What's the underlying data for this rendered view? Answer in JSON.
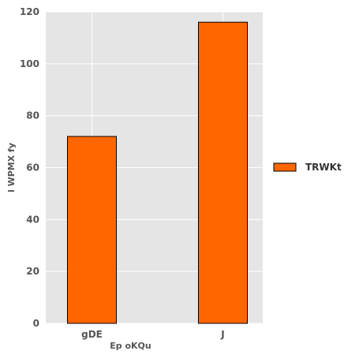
{
  "chart_data": {
    "type": "bar",
    "categories": [
      "gDE",
      "J"
    ],
    "series": [
      {
        "name": "TRWKt",
        "values": [
          72,
          116
        ],
        "color": "#ff6600"
      }
    ],
    "title": "",
    "xlabel": "Ep oKQu",
    "ylabel": "l WPMX fy",
    "ylim": [
      0,
      120
    ],
    "yticks": [
      0,
      20,
      40,
      60,
      80,
      100,
      120
    ],
    "grid": true,
    "legend_position": "right",
    "plot_background": "#e5e5e5",
    "grid_color": "#ffffff",
    "bar_edge_color": "#000000"
  }
}
